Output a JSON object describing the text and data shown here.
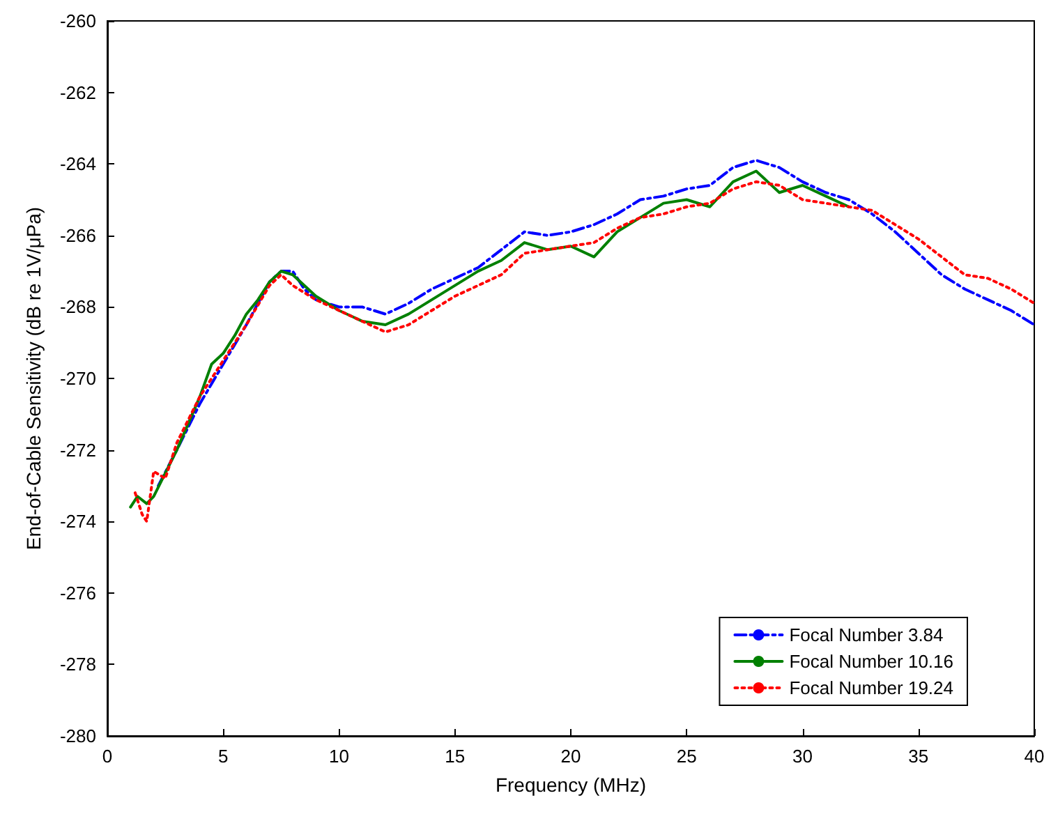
{
  "chart_data": {
    "type": "line",
    "xlabel": "Frequency (MHz)",
    "ylabel": "End-of-Cable Sensitivity (dB re 1V/μPa)",
    "xlim": [
      0,
      40
    ],
    "xticks": [
      0,
      5,
      10,
      15,
      20,
      25,
      30,
      35,
      40
    ],
    "ylim": [
      -280,
      -260
    ],
    "yticks": [
      -280,
      -278,
      -276,
      -274,
      -272,
      -270,
      -268,
      -266,
      -264,
      -262,
      -260
    ],
    "grid": false,
    "legend": "bottom right",
    "marker": "none",
    "series": [
      {
        "name": "Focal Number 3.84",
        "color": "#0000ff",
        "line_style": "dashed",
        "x": [
          2.2,
          3,
          4,
          5,
          6,
          7,
          7.5,
          8,
          8.5,
          9,
          10,
          11,
          12,
          13,
          14,
          15,
          16,
          17,
          18,
          19,
          20,
          21,
          22,
          23,
          24,
          25,
          26,
          27,
          28,
          29,
          30,
          31,
          32,
          33,
          34,
          35,
          36,
          37,
          38,
          39,
          40
        ],
        "values": [
          -273,
          -272,
          -270.7,
          -269.6,
          -268.5,
          -267.3,
          -267,
          -267,
          -267.5,
          -267.8,
          -268,
          -268,
          -268.2,
          -267.9,
          -267.5,
          -267.2,
          -266.9,
          -266.4,
          -265.9,
          -266,
          -265.9,
          -265.7,
          -265.4,
          -265,
          -264.9,
          -264.7,
          -264.6,
          -264.1,
          -263.9,
          -264.1,
          -264.5,
          -264.8,
          -265,
          -265.4,
          -265.9,
          -266.5,
          -267.1,
          -267.5,
          -267.8,
          -268.1,
          -268.5
        ]
      },
      {
        "name": "Focal Number 10.16",
        "color": "#008000",
        "line_style": "solid",
        "x": [
          1,
          1.3,
          1.7,
          2,
          3,
          4,
          4.5,
          5,
          5.5,
          6,
          6.5,
          7,
          7.5,
          8,
          9,
          10,
          11,
          12,
          13,
          14,
          15,
          16,
          17,
          18,
          19,
          20,
          21,
          22,
          23,
          24,
          25,
          26,
          27,
          28,
          28.5,
          29,
          30,
          31,
          32
        ],
        "values": [
          -273.6,
          -273.3,
          -273.5,
          -273.3,
          -272,
          -270.5,
          -269.6,
          -269.3,
          -268.8,
          -268.2,
          -267.8,
          -267.3,
          -267,
          -267.1,
          -267.7,
          -268.1,
          -268.4,
          -268.5,
          -268.2,
          -267.8,
          -267.4,
          -267,
          -266.7,
          -266.2,
          -266.4,
          -266.3,
          -266.6,
          -265.9,
          -265.5,
          -265.1,
          -265,
          -265.2,
          -264.5,
          -264.2,
          -264.5,
          -264.8,
          -264.6,
          -264.9,
          -265.2
        ]
      },
      {
        "name": "Focal Number 19.24",
        "color": "#ff0000",
        "line_style": "dotted",
        "x": [
          1.2,
          1.5,
          1.7,
          2,
          2.5,
          3,
          4,
          5,
          6,
          7,
          7.5,
          8,
          9,
          10,
          11,
          12,
          13,
          14,
          15,
          16,
          17,
          18,
          19,
          20,
          21,
          22,
          23,
          24,
          25,
          26,
          27,
          28,
          29,
          30,
          31,
          32,
          33,
          34,
          35,
          36,
          37,
          38,
          39,
          40
        ],
        "values": [
          -273.2,
          -273.8,
          -274,
          -272.6,
          -272.8,
          -271.8,
          -270.5,
          -269.5,
          -268.5,
          -267.4,
          -267.1,
          -267.4,
          -267.8,
          -268.1,
          -268.4,
          -268.7,
          -268.5,
          -268.1,
          -267.7,
          -267.4,
          -267.1,
          -266.5,
          -266.4,
          -266.3,
          -266.2,
          -265.8,
          -265.5,
          -265.4,
          -265.2,
          -265.1,
          -264.7,
          -264.5,
          -264.6,
          -265,
          -265.1,
          -265.2,
          -265.3,
          -265.7,
          -266.1,
          -266.6,
          -267.1,
          -267.2,
          -267.5,
          -267.9
        ]
      }
    ]
  }
}
